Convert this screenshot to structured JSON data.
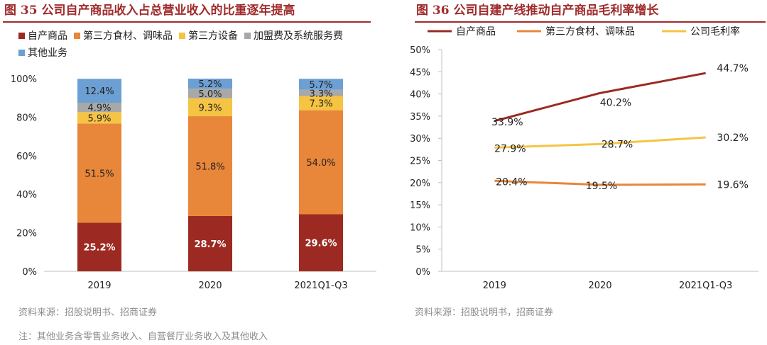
{
  "figure1": {
    "title": "图 35 公司自产商品收入占总营业收入的比重逐年提高",
    "source": "资料来源：招股说明书、招商证券",
    "note": "注：其他业务含零售业务收入、自营餐厅业务收入及其他收入"
  },
  "figure2": {
    "title": "图 36 公司自建产线推动自产商品毛利率增长",
    "source": "资料来源：招股说明书，招商证券"
  },
  "chart_data": [
    {
      "type": "bar",
      "stacked": true,
      "normalized": true,
      "title": "公司自产商品收入占总营业收入的比重逐年提高",
      "categories": [
        "2019",
        "2020",
        "2021Q1-Q3"
      ],
      "y_ticks": [
        "0%",
        "20%",
        "40%",
        "60%",
        "80%",
        "100%"
      ],
      "ylim": [
        0,
        100
      ],
      "legend_position": "top-left",
      "series": [
        {
          "name": "自产商品",
          "color": "#9c2a22",
          "values": [
            25.2,
            28.7,
            29.6
          ],
          "labels": [
            "25.2%",
            "28.7%",
            "29.6%"
          ],
          "label_color": "#ffffff",
          "label_bold": true
        },
        {
          "name": "第三方食材、调味品",
          "color": "#e8863a",
          "values": [
            51.5,
            51.8,
            54.0
          ],
          "labels": [
            "51.5%",
            "51.8%",
            "54.0%"
          ],
          "label_color": "#222222",
          "label_bold": false
        },
        {
          "name": "第三方设备",
          "color": "#f6c443",
          "values": [
            5.9,
            9.3,
            7.3
          ],
          "labels": [
            "5.9%",
            "9.3%",
            "7.3%"
          ],
          "label_color": "#222222",
          "label_bold": false
        },
        {
          "name": "加盟费及系统服务费",
          "color": "#a8a8a8",
          "values": [
            4.9,
            5.0,
            3.3
          ],
          "labels": [
            "4.9%",
            "5.0%",
            "3.3%"
          ],
          "label_color": "#222222",
          "label_bold": false
        },
        {
          "name": "其他业务",
          "color": "#6c9fd3",
          "values": [
            12.4,
            5.2,
            5.7
          ],
          "labels": [
            "12.4%",
            "5.2%",
            "5.7%"
          ],
          "label_color": "#222222",
          "label_bold": false
        }
      ]
    },
    {
      "type": "line",
      "title": "公司自建产线推动自产商品毛利率增长",
      "categories": [
        "2019",
        "2020",
        "2021Q1-Q3"
      ],
      "y_ticks": [
        "0%",
        "5%",
        "10%",
        "15%",
        "20%",
        "25%",
        "30%",
        "35%",
        "40%",
        "45%",
        "50%"
      ],
      "ylim": [
        0,
        50
      ],
      "legend_position": "top",
      "series": [
        {
          "name": "自产商品",
          "color": "#9c2a22",
          "values": [
            33.9,
            40.2,
            44.7
          ],
          "labels": [
            "33.9%",
            "40.2%",
            "44.7%"
          ]
        },
        {
          "name": "第三方食材、调味品",
          "color": "#e8863a",
          "values": [
            20.4,
            19.5,
            19.6
          ],
          "labels": [
            "20.4%",
            "19.5%",
            "19.6%"
          ]
        },
        {
          "name": "公司毛利率",
          "color": "#f6c443",
          "values": [
            27.9,
            28.7,
            30.2
          ],
          "labels": [
            "27.9%",
            "28.7%",
            "30.2%"
          ]
        }
      ]
    }
  ]
}
